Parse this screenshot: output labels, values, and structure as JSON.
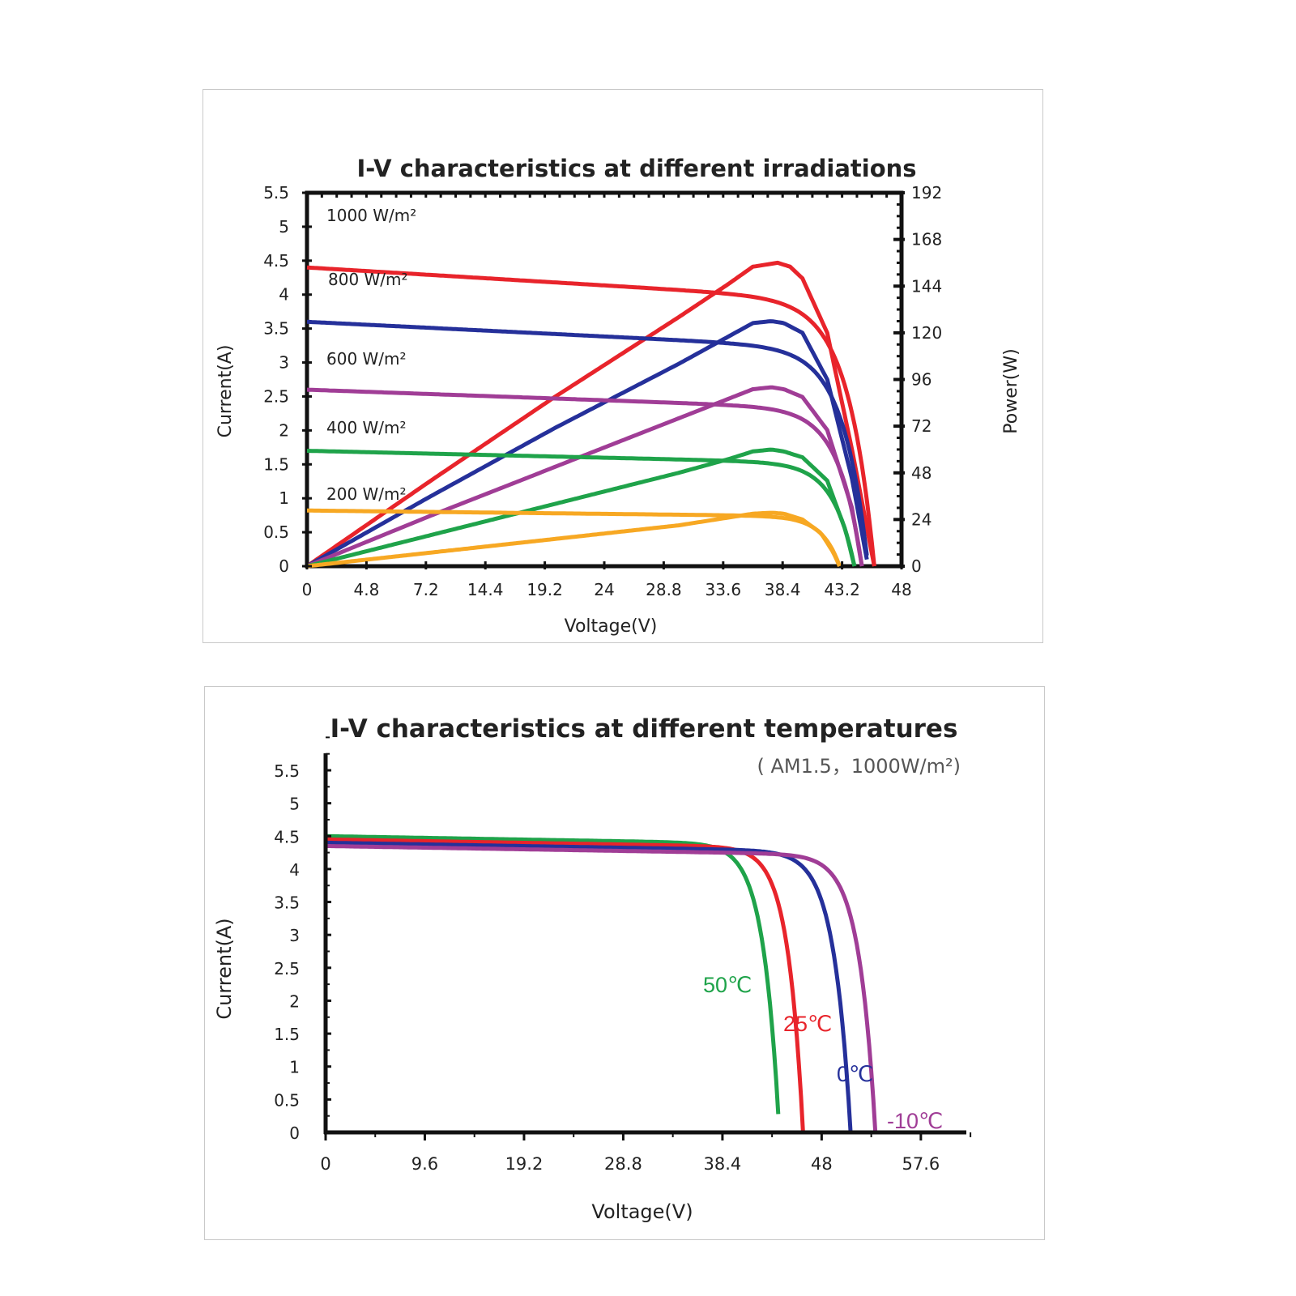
{
  "chart_data": [
    {
      "type": "line",
      "title": "I-V characteristics at different irradiations",
      "xlabel": "Voltage(V)",
      "ylabel": "Current(A)",
      "y2label": "Power(W)",
      "xlim": [
        0,
        48
      ],
      "ylim": [
        0,
        5.5
      ],
      "y2lim": [
        0,
        192
      ],
      "x_tick_labels": [
        "0",
        "4.8",
        "7.2",
        "14.4",
        "19.2",
        "24",
        "28.8",
        "33.6",
        "38.4",
        "43.2",
        "48"
      ],
      "y_tick_labels": [
        "0",
        "0.5",
        "1",
        "1.5",
        "2",
        "2.5",
        "3",
        "3.5",
        "4",
        "4.5",
        "5",
        "5.5"
      ],
      "y2_tick_labels": [
        "0",
        "24",
        "48",
        "72",
        "96",
        "120",
        "144",
        "168",
        "192"
      ],
      "series": [
        {
          "name": "1000 W/m²",
          "color": "#e8242b",
          "iv": {
            "isc": 4.4,
            "voc": 45.8,
            "knee": 37.0,
            "slope": 0.0025
          },
          "pv": [
            [
              0,
              0
            ],
            [
              10,
              44
            ],
            [
              20,
              87
            ],
            [
              30,
              128
            ],
            [
              34,
              145
            ],
            [
              36,
              154
            ],
            [
              38,
              156
            ],
            [
              39,
              154
            ],
            [
              40,
              148
            ],
            [
              42,
              120
            ],
            [
              44,
              60
            ],
            [
              45.8,
              0
            ]
          ]
        },
        {
          "name": "800 W/m²",
          "color": "#25309a",
          "iv": {
            "isc": 3.6,
            "voc": 45.3,
            "knee": 37.0,
            "slope": 0.0025
          },
          "pv": [
            [
              0,
              0
            ],
            [
              10,
              36
            ],
            [
              20,
              71
            ],
            [
              30,
              104
            ],
            [
              34,
              118
            ],
            [
              36,
              125
            ],
            [
              37.5,
              126
            ],
            [
              38.5,
              125
            ],
            [
              40,
              120
            ],
            [
              42,
              96
            ],
            [
              44,
              45
            ],
            [
              45.3,
              0
            ]
          ]
        },
        {
          "name": "600 W/m²",
          "color": "#a03d96",
          "iv": {
            "isc": 2.6,
            "voc": 44.8,
            "knee": 37.0,
            "slope": 0.0025
          },
          "pv": [
            [
              0,
              0
            ],
            [
              10,
              26
            ],
            [
              20,
              51
            ],
            [
              30,
              76
            ],
            [
              34,
              86
            ],
            [
              36,
              91
            ],
            [
              37.5,
              92
            ],
            [
              38.5,
              91
            ],
            [
              40,
              87
            ],
            [
              42,
              70
            ],
            [
              44,
              30
            ],
            [
              44.8,
              0
            ]
          ]
        },
        {
          "name": "400 W/m²",
          "color": "#1fa34a",
          "iv": {
            "isc": 1.7,
            "voc": 44.2,
            "knee": 37.0,
            "slope": 0.0025
          },
          "pv": [
            [
              0,
              0
            ],
            [
              10,
              16
            ],
            [
              20,
              32
            ],
            [
              30,
              48
            ],
            [
              34,
              55
            ],
            [
              36,
              59
            ],
            [
              37.5,
              60
            ],
            [
              38.5,
              59
            ],
            [
              40,
              56
            ],
            [
              42,
              44
            ],
            [
              43.5,
              18
            ],
            [
              44.2,
              0
            ]
          ]
        },
        {
          "name": "200 W/m²",
          "color": "#f7a823",
          "iv": {
            "isc": 0.82,
            "voc": 43.0,
            "knee": 37.0,
            "slope": 0.0025
          },
          "pv": [
            [
              0,
              0
            ],
            [
              10,
              7
            ],
            [
              20,
              14
            ],
            [
              30,
              21
            ],
            [
              34,
              25
            ],
            [
              36,
              27
            ],
            [
              37.5,
              27.5
            ],
            [
              38.5,
              27
            ],
            [
              40,
              24
            ],
            [
              41.5,
              17
            ],
            [
              42.5,
              7
            ],
            [
              43.0,
              0
            ]
          ]
        }
      ],
      "labels": [
        {
          "text": "1000 W/m²"
        },
        {
          "text": "800 W/m²"
        },
        {
          "text": "600 W/m²"
        },
        {
          "text": "400 W/m²"
        },
        {
          "text": "200 W/m²"
        }
      ]
    },
    {
      "type": "line",
      "title": "I-V characteristics at different temperatures",
      "subtitle": "( AM1.5，1000W/m²)",
      "xlabel": "Voltage(V)",
      "ylabel": "Current(A)",
      "xlim": [
        0,
        62
      ],
      "ylim": [
        0,
        5.5
      ],
      "x_tick_labels": [
        "0",
        "9.6",
        "19.2",
        "28.8",
        "38.4",
        "48",
        "57.6"
      ],
      "y_tick_labels": [
        "0",
        "0.5",
        "1",
        "1.5",
        "2",
        "2.5",
        "3",
        "3.5",
        "4",
        "4.5",
        "5",
        "5.5"
      ],
      "series": [
        {
          "name": "50℃",
          "color": "#1fa34a",
          "iv": {
            "isc": 4.5,
            "voc": 43.9,
            "knee": 37.5
          }
        },
        {
          "name": "25℃",
          "color": "#e8242b",
          "iv": {
            "isc": 4.45,
            "voc": 46.2,
            "knee": 40.0
          }
        },
        {
          "name": "0℃",
          "color": "#25309a",
          "iv": {
            "isc": 4.4,
            "voc": 50.8,
            "knee": 44.0
          }
        },
        {
          "name": "-10℃",
          "color": "#a03d96",
          "iv": {
            "isc": 4.35,
            "voc": 53.2,
            "knee": 46.5
          }
        }
      ]
    }
  ]
}
